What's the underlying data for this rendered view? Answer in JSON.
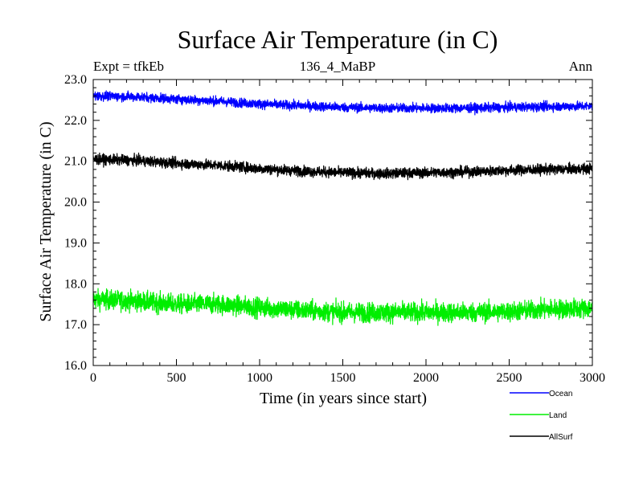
{
  "chart_data": {
    "type": "line",
    "title": "Surface Air Temperature (in C)",
    "subtitle": "136_4_MaBP",
    "left_label": "Expt = tfkEb",
    "right_label": "Ann",
    "xlabel": "Time (in years since start)",
    "ylabel": "Surface Air Temperature (in C)",
    "xlim": [
      0,
      3000
    ],
    "ylim": [
      16.0,
      23.0
    ],
    "x_ticks": [
      0,
      500,
      1000,
      1500,
      2000,
      2500,
      3000
    ],
    "x_tick_labels": [
      "0",
      "500",
      "1000",
      "1500",
      "2000",
      "2500",
      "3000"
    ],
    "y_ticks": [
      16.0,
      17.0,
      18.0,
      19.0,
      20.0,
      21.0,
      22.0,
      23.0
    ],
    "y_tick_labels": [
      "16.0",
      "17.0",
      "18.0",
      "19.0",
      "20.0",
      "21.0",
      "22.0",
      "23.0"
    ],
    "grid": false,
    "legend_position": "bottom-right",
    "x": [
      0,
      250,
      500,
      750,
      1000,
      1250,
      1500,
      1750,
      2000,
      2250,
      2500,
      2750,
      3000
    ],
    "series": [
      {
        "name": "Ocean",
        "color": "#0000ff",
        "noise": 0.08,
        "values": [
          22.6,
          22.58,
          22.52,
          22.47,
          22.4,
          22.36,
          22.32,
          22.3,
          22.3,
          22.3,
          22.32,
          22.34,
          22.35
        ]
      },
      {
        "name": "Land",
        "color": "#00ee00",
        "noise": 0.17,
        "values": [
          17.62,
          17.58,
          17.5,
          17.5,
          17.42,
          17.35,
          17.3,
          17.3,
          17.3,
          17.3,
          17.32,
          17.38,
          17.4
        ]
      },
      {
        "name": "AllSurf",
        "color": "#000000",
        "noise": 0.09,
        "values": [
          21.05,
          21.02,
          20.95,
          20.9,
          20.82,
          20.76,
          20.72,
          20.7,
          20.72,
          20.74,
          20.78,
          20.8,
          20.82
        ]
      }
    ]
  }
}
